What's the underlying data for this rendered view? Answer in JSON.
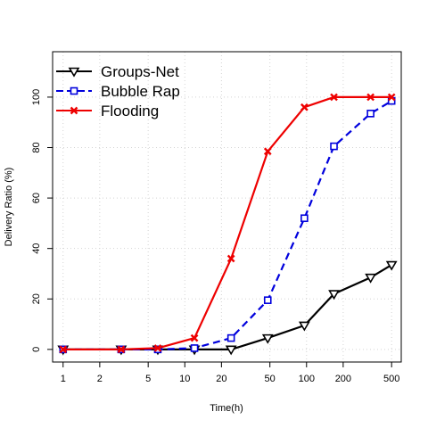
{
  "chart_data": {
    "type": "line",
    "xlabel": "Time(h)",
    "ylabel": "Delivery Ratio (%)",
    "x_scale": "log",
    "xlim": [
      0.82,
      600
    ],
    "ylim": [
      -5,
      118
    ],
    "x_ticks": [
      1,
      2,
      5,
      10,
      20,
      50,
      100,
      200,
      500
    ],
    "x_tick_labels": [
      "1",
      "2",
      "5",
      "10",
      "20",
      "50",
      "100",
      "200",
      "500"
    ],
    "y_ticks": [
      0,
      20,
      40,
      60,
      80,
      100
    ],
    "y_tick_labels": [
      "0",
      "20",
      "40",
      "60",
      "80",
      "100"
    ],
    "grid": true,
    "legend_position": "top-left",
    "series": [
      {
        "name": "Groups-Net",
        "color": "#000000",
        "dash": "solid",
        "marker": "triangle-down",
        "x": [
          1,
          3,
          6,
          12,
          24,
          48,
          96,
          168,
          336,
          500
        ],
        "y": [
          0,
          0,
          0,
          0,
          0,
          4.5,
          9.5,
          22,
          28.5,
          33.5
        ]
      },
      {
        "name": "Bubble Rap",
        "color": "#0000dd",
        "dash": "dashed",
        "marker": "square",
        "x": [
          1,
          3,
          6,
          12,
          24,
          48,
          96,
          168,
          336,
          500
        ],
        "y": [
          0,
          0,
          0,
          0.5,
          4.5,
          19.5,
          52,
          80.5,
          93.5,
          98.5
        ]
      },
      {
        "name": "Flooding",
        "color": "#ee0000",
        "dash": "solid",
        "marker": "cross",
        "x": [
          1,
          3,
          6,
          12,
          24,
          48,
          96,
          168,
          336,
          500
        ],
        "y": [
          0,
          0,
          0.5,
          4.5,
          36,
          78.5,
          96,
          100,
          100,
          100
        ]
      }
    ]
  }
}
